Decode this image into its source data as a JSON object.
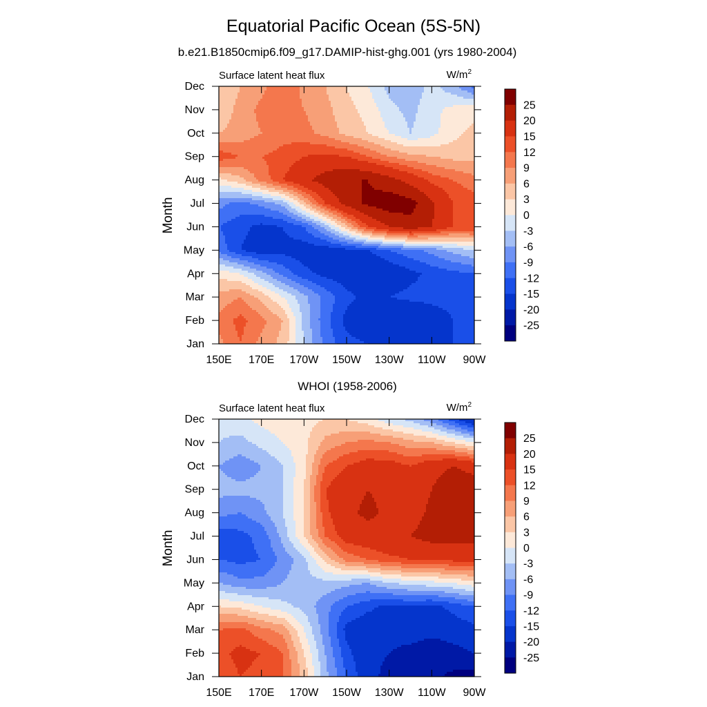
{
  "title": "Equatorial Pacific Ocean (5S-5N)",
  "panels": [
    {
      "header": "b.e21.B1850cmip6.f09_g17.DAMIP-hist-ghg.001 (yrs 1980-2004)",
      "left_label": "Surface latent heat flux",
      "units_base": "W/m",
      "units_sup": "2"
    },
    {
      "header": "WHOI (1958-2006)",
      "left_label": "Surface latent heat flux",
      "units_base": "W/m",
      "units_sup": "2"
    }
  ],
  "chart_data": [
    {
      "type": "heatmap",
      "title": "b.e21.B1850cmip6.f09_g17.DAMIP-hist-ghg.001 (yrs 1980-2004)",
      "subtitle_left": "Surface latent heat flux",
      "units": "W/m2",
      "xlabel": "",
      "ylabel": "Month",
      "x_tick_labels": [
        "150E",
        "170E",
        "170W",
        "150W",
        "130W",
        "110W",
        "90W"
      ],
      "y_tick_labels": [
        "Jan",
        "Feb",
        "Mar",
        "Apr",
        "May",
        "Jun",
        "Jul",
        "Aug",
        "Sep",
        "Oct",
        "Nov",
        "Dec"
      ],
      "x": [
        150,
        160,
        170,
        180,
        190,
        200,
        210,
        220,
        230,
        240,
        250,
        260,
        270
      ],
      "y": [
        1,
        2,
        3,
        4,
        5,
        6,
        7,
        8,
        9,
        10,
        11,
        12
      ],
      "z": [
        [
          8,
          12,
          8,
          5,
          -3,
          -10,
          -14,
          -15,
          -16,
          -18,
          -17,
          -15,
          -12
        ],
        [
          10,
          13,
          10,
          6,
          -4,
          -11,
          -16,
          -18,
          -20,
          -20,
          -17,
          -15,
          -13
        ],
        [
          7,
          9,
          5,
          0,
          -5,
          -10,
          -14,
          -16,
          -15,
          -14,
          -14,
          -14,
          -13
        ],
        [
          2,
          0,
          -5,
          -10,
          -14,
          -16,
          -17,
          -20,
          -18,
          -16,
          -14,
          -13,
          -12
        ],
        [
          -10,
          -15,
          -17,
          -16,
          -17,
          -17,
          -16,
          -15,
          -12,
          -10,
          -8,
          -5,
          -3
        ],
        [
          -12,
          -14,
          -16,
          -15,
          -12,
          -5,
          5,
          15,
          20,
          23,
          20,
          15,
          15
        ],
        [
          -8,
          -10,
          -8,
          -5,
          5,
          15,
          22,
          26,
          28,
          27,
          21,
          15,
          14
        ],
        [
          2,
          5,
          10,
          15,
          19,
          22,
          25,
          25,
          22,
          18,
          14,
          12,
          10
        ],
        [
          14,
          12,
          12,
          13,
          15,
          16,
          15,
          12,
          9,
          7,
          6,
          5,
          5
        ],
        [
          6,
          7,
          9,
          11,
          10,
          8,
          5,
          3,
          0,
          -3,
          -1,
          2,
          4
        ],
        [
          4,
          7,
          10,
          11,
          9,
          7,
          4,
          2,
          -2,
          -4,
          -1,
          1,
          2
        ],
        [
          3,
          6,
          8,
          12,
          8,
          6,
          3,
          0,
          -4,
          -5,
          -2,
          -5,
          -10
        ]
      ],
      "colorbar_levels": [
        -25,
        -20,
        -15,
        -12,
        -9,
        -6,
        -3,
        0,
        3,
        6,
        9,
        12,
        15,
        20,
        25
      ],
      "colorbar_labels": [
        "25",
        "20",
        "15",
        "12",
        "9",
        "6",
        "3",
        "0",
        "-3",
        "-6",
        "-9",
        "-12",
        "-15",
        "-20",
        "-25"
      ],
      "colors": [
        "#00007f",
        "#0019a6",
        "#0535cc",
        "#1a4fe8",
        "#3f70f5",
        "#6f93f5",
        "#a3bef5",
        "#d6e5f7",
        "#fde9d9",
        "#fbc6a6",
        "#f79f77",
        "#f4774d",
        "#ec5028",
        "#d83212",
        "#b31e05",
        "#800000"
      ]
    },
    {
      "type": "heatmap",
      "title": "WHOI (1958-2006)",
      "subtitle_left": "Surface latent heat flux",
      "units": "W/m2",
      "xlabel": "",
      "ylabel": "Month",
      "x_tick_labels": [
        "150E",
        "170E",
        "170W",
        "150W",
        "130W",
        "110W",
        "90W"
      ],
      "y_tick_labels": [
        "Jan",
        "Feb",
        "Mar",
        "Apr",
        "May",
        "Jun",
        "Jul",
        "Aug",
        "Sep",
        "Oct",
        "Nov",
        "Dec"
      ],
      "x": [
        150,
        160,
        170,
        180,
        190,
        200,
        210,
        220,
        230,
        240,
        250,
        260,
        270
      ],
      "y": [
        1,
        2,
        3,
        4,
        5,
        6,
        7,
        8,
        9,
        10,
        11,
        12
      ],
      "z": [
        [
          13,
          15,
          14,
          12,
          5,
          -5,
          -12,
          -18,
          -22,
          -25,
          -24,
          -26,
          -27
        ],
        [
          14,
          16,
          15,
          12,
          3,
          -6,
          -14,
          -18,
          -20,
          -22,
          -24,
          -22,
          -20
        ],
        [
          12,
          13,
          10,
          8,
          0,
          -8,
          -16,
          -18,
          -18,
          -17,
          -18,
          -17,
          -16
        ],
        [
          3,
          2,
          0,
          -2,
          -4,
          -8,
          -12,
          -14,
          -16,
          -15,
          -16,
          -14,
          -12
        ],
        [
          -6,
          -8,
          -8,
          -6,
          -4,
          -4,
          -5,
          -6,
          -3,
          -2,
          -1,
          0,
          2
        ],
        [
          -12,
          -13,
          -12,
          -8,
          -4,
          4,
          10,
          12,
          14,
          15,
          15,
          16,
          16
        ],
        [
          -14,
          -13,
          -11,
          -5,
          3,
          12,
          17,
          18,
          19,
          20,
          22,
          22,
          22
        ],
        [
          -8,
          -9,
          -7,
          -3,
          3,
          14,
          19,
          21,
          19,
          18,
          21,
          24,
          23
        ],
        [
          -5,
          -5,
          -5,
          -3,
          3,
          15,
          18,
          20,
          19,
          17,
          20,
          24,
          23
        ],
        [
          -6,
          -8,
          -6,
          -3,
          2,
          12,
          15,
          17,
          17,
          15,
          18,
          20,
          18
        ],
        [
          -3,
          -4,
          -2,
          0,
          2,
          7,
          9,
          10,
          9,
          7,
          6,
          3,
          0
        ],
        [
          -2,
          -1,
          1,
          2,
          2,
          3,
          3,
          1,
          -2,
          -4,
          -8,
          -14,
          -20
        ]
      ],
      "colorbar_levels": [
        -25,
        -20,
        -15,
        -12,
        -9,
        -6,
        -3,
        0,
        3,
        6,
        9,
        12,
        15,
        20,
        25
      ],
      "colorbar_labels": [
        "25",
        "20",
        "15",
        "12",
        "9",
        "6",
        "3",
        "0",
        "-3",
        "-6",
        "-9",
        "-12",
        "-15",
        "-20",
        "-25"
      ],
      "colors": [
        "#00007f",
        "#0019a6",
        "#0535cc",
        "#1a4fe8",
        "#3f70f5",
        "#6f93f5",
        "#a3bef5",
        "#d6e5f7",
        "#fde9d9",
        "#fbc6a6",
        "#f79f77",
        "#f4774d",
        "#ec5028",
        "#d83212",
        "#b31e05",
        "#800000"
      ]
    }
  ]
}
